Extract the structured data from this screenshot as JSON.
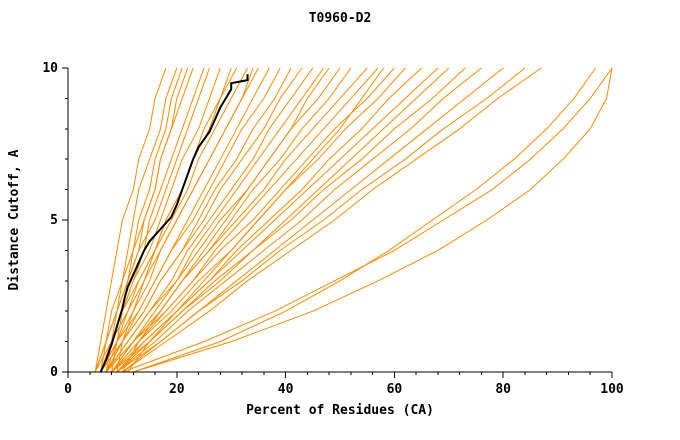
{
  "chart_data": {
    "type": "line",
    "title": "T0960-D2",
    "xlabel": "Percent of Residues (CA)",
    "ylabel": "Distance Cutoff, A",
    "xlim": [
      0,
      100
    ],
    "ylim": [
      0,
      10
    ],
    "x_ticks": [
      0,
      20,
      40,
      60,
      80,
      100
    ],
    "y_ticks": [
      0,
      5,
      10
    ],
    "x_minor_step": 4,
    "y_minor_step": 1,
    "grid": false,
    "legend": "none",
    "colors": {
      "model": "#ff8c00",
      "highlight": "#000000",
      "axis": "#000000"
    },
    "y_levels": [
      0,
      1,
      2,
      3,
      4,
      5,
      6,
      7,
      8,
      9,
      10
    ],
    "highlight_series": {
      "name": "selected-model",
      "points": [
        [
          6,
          0
        ],
        [
          7,
          0.4
        ],
        [
          8,
          0.9
        ],
        [
          9,
          1.5
        ],
        [
          10,
          2.1
        ],
        [
          10.5,
          2.5
        ],
        [
          11,
          2.8
        ],
        [
          12,
          3.2
        ],
        [
          13,
          3.6
        ],
        [
          14,
          4.0
        ],
        [
          15,
          4.3
        ],
        [
          17,
          4.7
        ],
        [
          19,
          5.1
        ],
        [
          20,
          5.5
        ],
        [
          21,
          6.0
        ],
        [
          22,
          6.5
        ],
        [
          23,
          7.0
        ],
        [
          24,
          7.4
        ],
        [
          26,
          7.9
        ],
        [
          27,
          8.3
        ],
        [
          28,
          8.7
        ],
        [
          29,
          9.0
        ],
        [
          30,
          9.3
        ],
        [
          30,
          9.5
        ],
        [
          33,
          9.6
        ],
        [
          33,
          9.8
        ]
      ]
    },
    "series": [
      {
        "xs": [
          5,
          6,
          7,
          8,
          9,
          10,
          12,
          13,
          15,
          16,
          18
        ]
      },
      {
        "xs": [
          6,
          7,
          8,
          10,
          11,
          12,
          13,
          15,
          17,
          18,
          20
        ]
      },
      {
        "xs": [
          5,
          7,
          9,
          10,
          12,
          13,
          15,
          16,
          18,
          19,
          21
        ]
      },
      {
        "xs": [
          8,
          9,
          10,
          11,
          13,
          14,
          16,
          17,
          19,
          20,
          22
        ]
      },
      {
        "xs": [
          6,
          8,
          9,
          11,
          12,
          14,
          16,
          17,
          19,
          21,
          23
        ]
      },
      {
        "xs": [
          7,
          8,
          10,
          12,
          14,
          15,
          17,
          19,
          21,
          23,
          25
        ]
      },
      {
        "xs": [
          5,
          7,
          9,
          11,
          13,
          16,
          18,
          20,
          22,
          24,
          26
        ]
      },
      {
        "xs": [
          6,
          8,
          10,
          12,
          15,
          17,
          19,
          21,
          24,
          26,
          28
        ]
      },
      {
        "xs": [
          7,
          9,
          11,
          14,
          16,
          18,
          21,
          23,
          25,
          28,
          30
        ]
      },
      {
        "xs": [
          6,
          8,
          11,
          13,
          16,
          18,
          21,
          23,
          26,
          28,
          31
        ]
      },
      {
        "xs": [
          5,
          8,
          10,
          13,
          16,
          19,
          22,
          24,
          27,
          30,
          33
        ]
      },
      {
        "xs": [
          9,
          10,
          12,
          14,
          17,
          20,
          23,
          26,
          29,
          32,
          34
        ]
      },
      {
        "xs": [
          6,
          9,
          12,
          15,
          17,
          20,
          23,
          26,
          29,
          32,
          35
        ]
      },
      {
        "xs": [
          7,
          10,
          13,
          16,
          19,
          22,
          25,
          28,
          31,
          34,
          37
        ]
      },
      {
        "xs": [
          6,
          9,
          13,
          16,
          19,
          23,
          26,
          29,
          32,
          36,
          39
        ]
      },
      {
        "xs": [
          7,
          10,
          14,
          17,
          21,
          24,
          27,
          31,
          34,
          38,
          41
        ]
      },
      {
        "xs": [
          6,
          10,
          14,
          17,
          21,
          25,
          28,
          32,
          36,
          39,
          43
        ]
      },
      {
        "xs": [
          7,
          11,
          15,
          19,
          22,
          26,
          30,
          34,
          37,
          41,
          45
        ]
      },
      {
        "xs": [
          8,
          12,
          16,
          20,
          23,
          27,
          31,
          35,
          39,
          43,
          47
        ]
      },
      {
        "xs": [
          10,
          13,
          17,
          21,
          25,
          29,
          33,
          37,
          41,
          44,
          48
        ]
      },
      {
        "xs": [
          7,
          11,
          15,
          20,
          24,
          28,
          33,
          37,
          41,
          46,
          50
        ]
      },
      {
        "xs": [
          8,
          12,
          17,
          21,
          26,
          30,
          34,
          39,
          43,
          48,
          52
        ]
      },
      {
        "xs": [
          7,
          12,
          17,
          21,
          26,
          31,
          36,
          40,
          45,
          50,
          55
        ]
      },
      {
        "xs": [
          8,
          13,
          18,
          23,
          27,
          32,
          37,
          42,
          47,
          52,
          57
        ]
      },
      {
        "xs": [
          11,
          15,
          20,
          25,
          30,
          35,
          40,
          45,
          50,
          54,
          58
        ]
      },
      {
        "xs": [
          7,
          12,
          18,
          23,
          28,
          34,
          39,
          44,
          49,
          55,
          60
        ]
      },
      {
        "xs": [
          8,
          13,
          19,
          24,
          30,
          35,
          40,
          46,
          51,
          57,
          62
        ]
      },
      {
        "xs": [
          9,
          14,
          20,
          26,
          31,
          37,
          43,
          48,
          54,
          59,
          65
        ]
      },
      {
        "xs": [
          8,
          14,
          20,
          26,
          32,
          38,
          44,
          50,
          56,
          62,
          68
        ]
      },
      {
        "xs": [
          9,
          15,
          21,
          27,
          34,
          40,
          46,
          52,
          58,
          64,
          70
        ]
      },
      {
        "xs": [
          8,
          15,
          21,
          28,
          34,
          41,
          47,
          54,
          60,
          67,
          73
        ]
      },
      {
        "xs": [
          9,
          16,
          22,
          29,
          36,
          43,
          49,
          56,
          63,
          69,
          76
        ]
      },
      {
        "xs": [
          10,
          17,
          24,
          31,
          38,
          45,
          52,
          59,
          66,
          73,
          80
        ]
      },
      {
        "xs": [
          9,
          17,
          24,
          32,
          39,
          47,
          54,
          62,
          69,
          77,
          84
        ]
      },
      {
        "xs": [
          10,
          18,
          26,
          33,
          41,
          49,
          56,
          64,
          72,
          79,
          87
        ]
      },
      {
        "xs": [
          12,
          28,
          40,
          50,
          59,
          67,
          75,
          82,
          88,
          93,
          97
        ]
      },
      {
        "xs": [
          10,
          25,
          38,
          49,
          60,
          69,
          78,
          85,
          91,
          96,
          100
        ]
      },
      {
        "xs": [
          12,
          30,
          45,
          57,
          68,
          77,
          85,
          91,
          96,
          99,
          100
        ]
      }
    ]
  }
}
